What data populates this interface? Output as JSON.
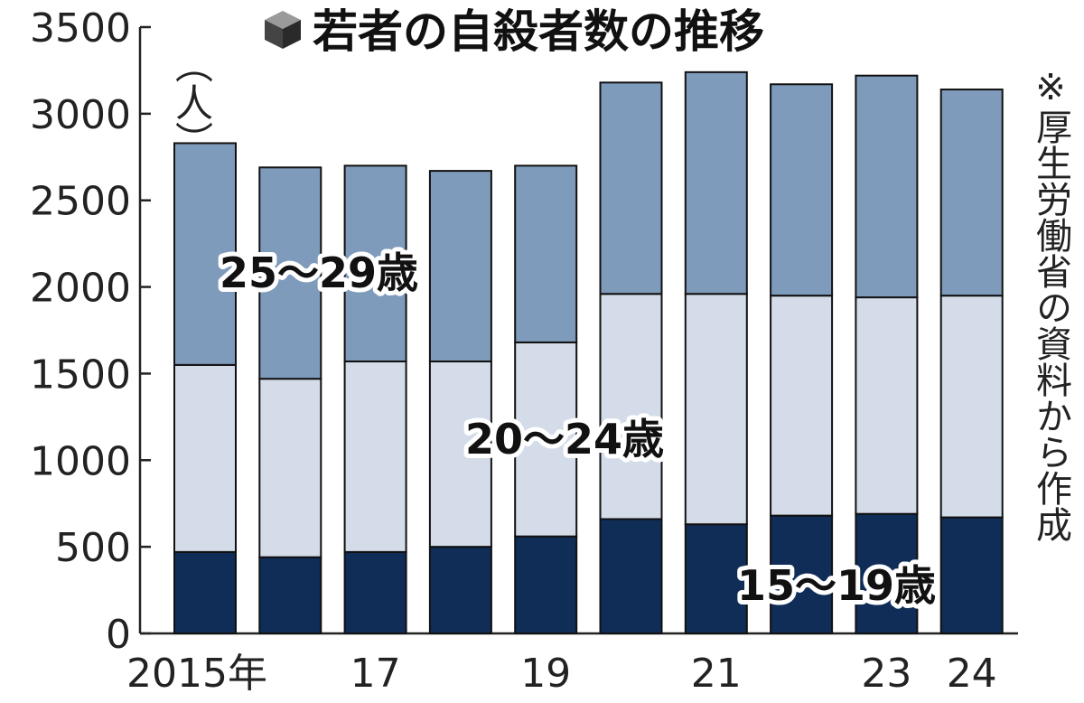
{
  "title": "若者の自殺者数の推移",
  "unit_label": "（人）",
  "source_note": "※厚生労働省の資料から作成",
  "colors": {
    "age_15_19": "#0f2d57",
    "age_20_24": "#d3dce8",
    "age_25_29": "#7f9bbb",
    "title_icon": "#444444"
  },
  "icon": "cube-icon",
  "chart_data": {
    "type": "bar",
    "stacked": true,
    "title": "若者の自殺者数の推移",
    "ylabel": "（人）",
    "ylim": [
      0,
      3500
    ],
    "yticks": [
      0,
      500,
      1000,
      1500,
      2000,
      2500,
      3000,
      3500
    ],
    "x_tick_labels": [
      "2015年",
      "",
      "17",
      "",
      "19",
      "",
      "21",
      "",
      "23",
      "24"
    ],
    "categories": [
      "2015",
      "2016",
      "2017",
      "2018",
      "2019",
      "2020",
      "2021",
      "2022",
      "2023",
      "2024"
    ],
    "series": [
      {
        "name": "15〜19歳",
        "values": [
          470,
          440,
          470,
          500,
          560,
          660,
          630,
          680,
          690,
          670
        ]
      },
      {
        "name": "20〜24歳",
        "values": [
          1080,
          1030,
          1100,
          1070,
          1120,
          1300,
          1330,
          1270,
          1250,
          1280
        ]
      },
      {
        "name": "25〜29歳",
        "values": [
          1280,
          1220,
          1130,
          1100,
          1020,
          1220,
          1280,
          1220,
          1280,
          1190
        ]
      }
    ],
    "grid": false,
    "legend": "inline"
  }
}
